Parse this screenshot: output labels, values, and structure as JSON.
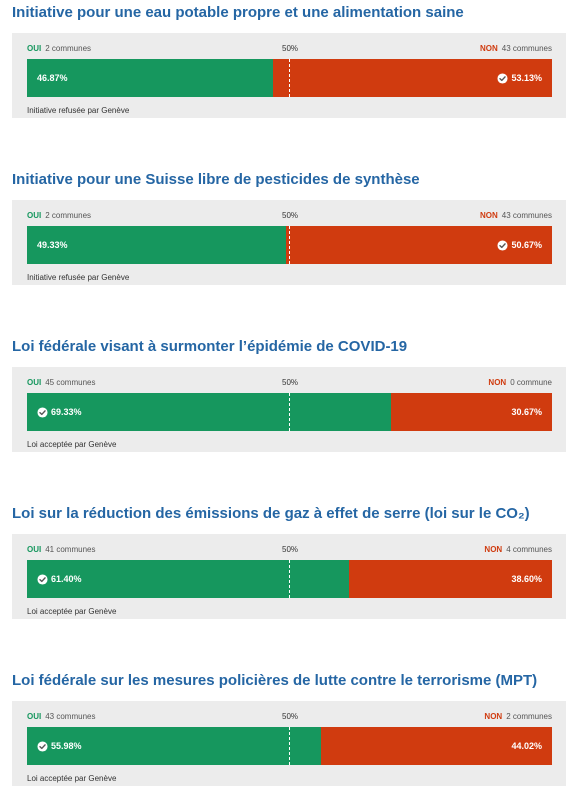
{
  "chart_data": {
    "type": "bar",
    "charts": [
      {
        "title": "Initiative pour une eau potable propre et une alimentation saine",
        "categories": [
          "OUI",
          "NON"
        ],
        "values": [
          46.87,
          53.13
        ],
        "yes_communes": "2 communes",
        "no_communes": "43 communes",
        "winner": "no",
        "result": "Initiative refusée par Genève"
      },
      {
        "title": "Initiative pour une Suisse libre de pesticides de synthèse",
        "categories": [
          "OUI",
          "NON"
        ],
        "values": [
          49.33,
          50.67
        ],
        "yes_communes": "2 communes",
        "no_communes": "43 communes",
        "winner": "no",
        "result": "Initiative refusée par Genève"
      },
      {
        "title": "Loi fédérale visant à surmonter l’épidémie de COVID-19",
        "categories": [
          "OUI",
          "NON"
        ],
        "values": [
          69.33,
          30.67
        ],
        "yes_communes": "45 communes",
        "no_communes": "0 commune",
        "winner": "yes",
        "result": "Loi acceptée par Genève"
      },
      {
        "title": "Loi sur la réduction des émissions de gaz à effet de serre (loi sur le CO₂)",
        "categories": [
          "OUI",
          "NON"
        ],
        "values": [
          61.4,
          38.6
        ],
        "yes_communes": "41 communes",
        "no_communes": "4 communes",
        "winner": "yes",
        "result": "Loi acceptée par Genève"
      },
      {
        "title": "Loi fédérale sur les mesures policières de lutte contre le terrorisme (MPT)",
        "categories": [
          "OUI",
          "NON"
        ],
        "values": [
          55.98,
          44.02
        ],
        "yes_communes": "43 communes",
        "no_communes": "2 communes",
        "winner": "yes",
        "result": "Loi acceptée par Genève"
      }
    ]
  },
  "labels": {
    "yes": "OUI",
    "no": "NON",
    "half": "50%",
    "pct": [
      "46.87%",
      "53.13%",
      "49.33%",
      "50.67%",
      "69.33%",
      "30.67%",
      "61.40%",
      "38.60%",
      "55.98%",
      "44.02%"
    ]
  },
  "colors": {
    "yes": "#16975e",
    "no": "#d03b0f",
    "title": "#2566a4",
    "panel": "#ececec"
  },
  "icons": {
    "winner": "check-circle-icon"
  }
}
